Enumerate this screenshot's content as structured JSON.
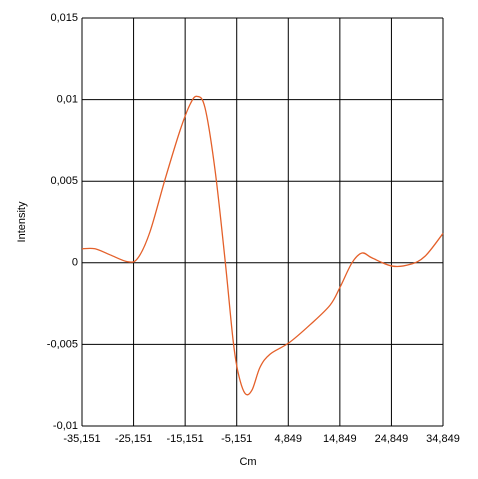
{
  "chart_data": {
    "type": "line",
    "xlabel": "Cm",
    "ylabel": "Intensity",
    "x": [
      -35.151,
      -32.63,
      -29.72,
      -26.23,
      -24.29,
      -21.97,
      -19.06,
      -16.15,
      -14.21,
      -12.85,
      -11.3,
      -9.36,
      -7.42,
      -5.87,
      -4.9,
      -3.54,
      -2.19,
      -0.63,
      1.3,
      4.99,
      9.06,
      12.94,
      14.88,
      17.2,
      19.14,
      21.08,
      24.96,
      28.45,
      31.36,
      34.849
    ],
    "series": [
      {
        "color": "#e4602a",
        "values": [
          0.00086,
          0.00086,
          0.00049,
          6e-05,
          0.0003,
          0.0019,
          0.0051,
          0.0081,
          0.0097,
          0.0102,
          0.0095,
          0.0057,
          0.0002,
          -0.0047,
          -0.0067,
          -0.008,
          -0.0078,
          -0.0064,
          -0.0056,
          -0.0049,
          -0.0038,
          -0.0026,
          -0.0015,
          0,
          0.0006,
          0.0003,
          -0.0002,
          -0.0001,
          0.0004,
          0.0018
        ]
      }
    ],
    "xlim": [
      -35.151,
      34.849
    ],
    "xticks": [
      {
        "value": -35.151,
        "label": "-35,151"
      },
      {
        "value": -25.151,
        "label": "-25,151"
      },
      {
        "value": -15.151,
        "label": "-15,151"
      },
      {
        "value": -5.151,
        "label": "-5,151"
      },
      {
        "value": 4.849,
        "label": "4,849"
      },
      {
        "value": 14.849,
        "label": "14,849"
      },
      {
        "value": 24.849,
        "label": "24,849"
      },
      {
        "value": 34.849,
        "label": "34,849"
      }
    ],
    "ylim": [
      -0.01,
      0.015
    ],
    "yticks": [
      {
        "value": -0.01,
        "label": "-0,01"
      },
      {
        "value": -0.005,
        "label": "-0,005"
      },
      0,
      {
        "value": 0.005,
        "label": "0,005"
      },
      {
        "value": 0.01,
        "label": "0,01"
      },
      {
        "value": 0.015,
        "label": "0,015"
      }
    ],
    "grid": true
  }
}
